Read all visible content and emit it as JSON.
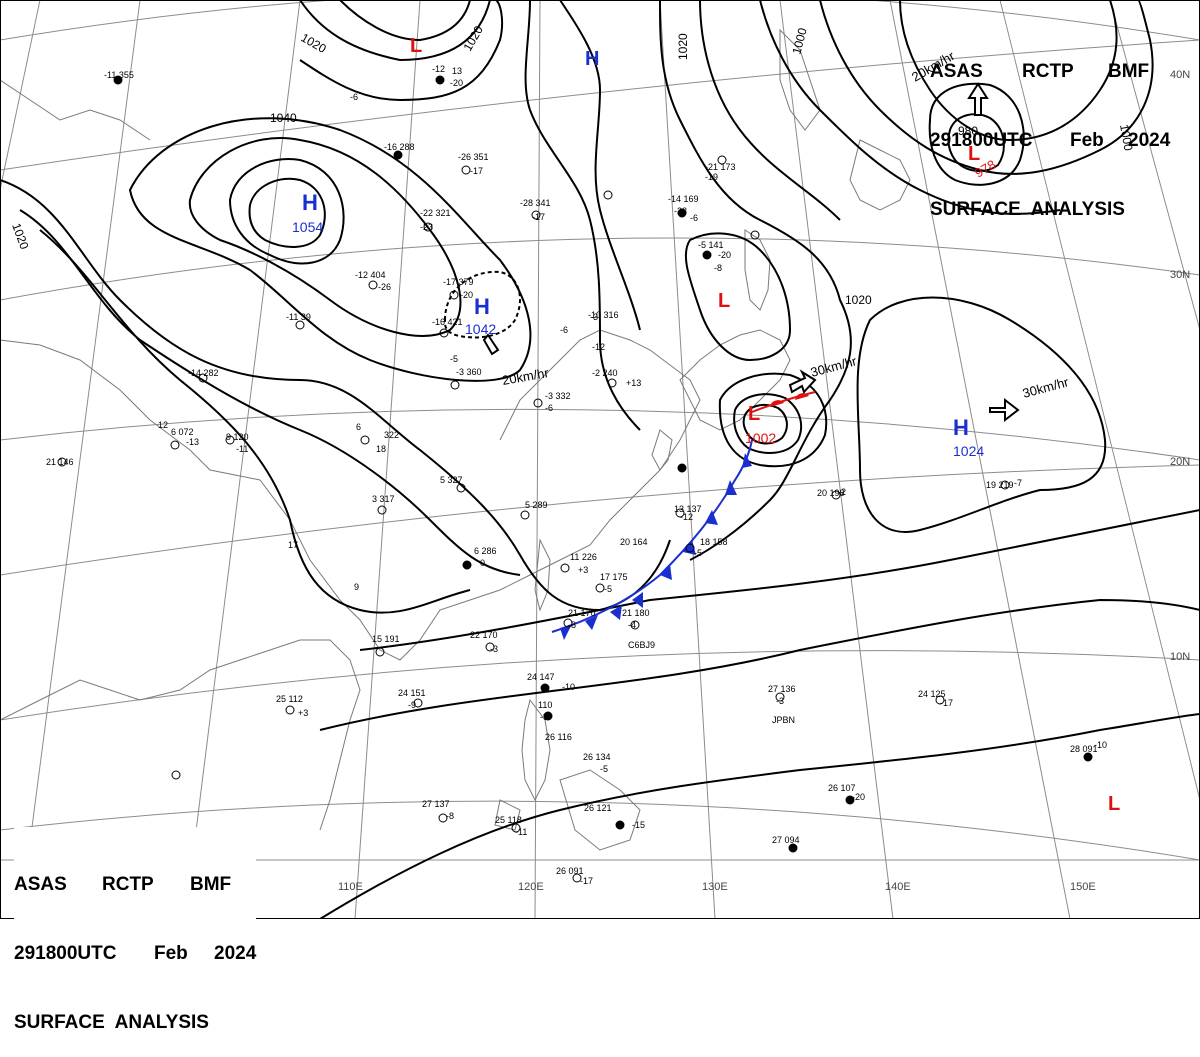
{
  "header_top": {
    "line1": [
      "ASAS",
      "RCTP",
      "BMF"
    ],
    "line2": [
      "291800UTC",
      "Feb",
      "2024"
    ],
    "line3": "SURFACE  ANALYSIS"
  },
  "header_bottom": {
    "line1": [
      "ASAS",
      "RCTP",
      "BMF"
    ],
    "line2": [
      "291800UTC",
      "Feb",
      "2024"
    ],
    "line3": "SURFACE  ANALYSIS"
  },
  "colors": {
    "high": "#1a2fd0",
    "low": "#e01010",
    "front": "#1a2fd0",
    "isobar": "#000000",
    "grid": "#888888",
    "coast": "#777777"
  },
  "longitude_labels": [
    "110E",
    "120E",
    "130E",
    "140E",
    "150E"
  ],
  "latitude_labels": [
    "40N",
    "30N",
    "20N",
    "10N"
  ],
  "isobar_labels": [
    "1020",
    "1020",
    "1020",
    "1040",
    "1020",
    "1000",
    "1000",
    "980",
    "1020"
  ],
  "pressure_systems": [
    {
      "type": "L",
      "label": "L",
      "value": ""
    },
    {
      "type": "H",
      "label": "H",
      "value": ""
    },
    {
      "type": "H",
      "label": "H",
      "value": "1054"
    },
    {
      "type": "H",
      "label": "H",
      "value": "1042"
    },
    {
      "type": "L",
      "label": "L",
      "value": ""
    },
    {
      "type": "L",
      "label": "L",
      "value": "1002"
    },
    {
      "type": "H",
      "label": "H",
      "value": "1024"
    },
    {
      "type": "L",
      "label": "L",
      "value": "978"
    },
    {
      "type": "L",
      "label": "L",
      "value": ""
    }
  ],
  "motion_vectors": [
    "20km/hr",
    "30km/hr",
    "30km/hr",
    "20km/hr"
  ],
  "station_labels": [
    "C6BJ9",
    "JPBN"
  ],
  "station_obs": [
    "-11 355",
    "-6",
    "-12",
    "13",
    "-20",
    "-16 288",
    "-26 351",
    "-17",
    "-28 341",
    "-17",
    "-22 321",
    "-23",
    "-17 379",
    "-20",
    "-16 421",
    "-12 404",
    "-26",
    "-11 39",
    "-14 282",
    "-3 360",
    "-5",
    "-6",
    "-3",
    "+13",
    "-3 332",
    "-6",
    "-2 240",
    "-12",
    "-10 316",
    "-21 173",
    "-19",
    "-14 169",
    "-23",
    "-6",
    "-5 141",
    "-20",
    "-8",
    "6",
    "322",
    "18",
    "5 327",
    "3 317",
    "5 289",
    "6 286",
    "0",
    "11 226",
    "+3",
    "17 175",
    "-5",
    "21 170",
    "-8",
    "21 180",
    "-4",
    "22 170",
    "-3",
    "15 191",
    "24 151",
    "-9",
    "25 112",
    "+3",
    "24 147",
    "-10",
    "110",
    "-9",
    "26 116",
    "21 146",
    "19 219",
    "-7",
    "20 198",
    "-2",
    "13 137",
    "-12",
    "18 158",
    "-5",
    "20 164",
    "27 136",
    "-3",
    "24 125",
    "-17",
    "26 107",
    "-20",
    "28 091",
    "-10",
    "27 094",
    "27 137",
    "-8",
    "25 118",
    "-11",
    "26 121",
    "-15",
    "26 091",
    "-17",
    "26 134",
    "-5",
    "9 120",
    "-11",
    "6 072",
    "-13",
    "12",
    "17",
    "9"
  ]
}
